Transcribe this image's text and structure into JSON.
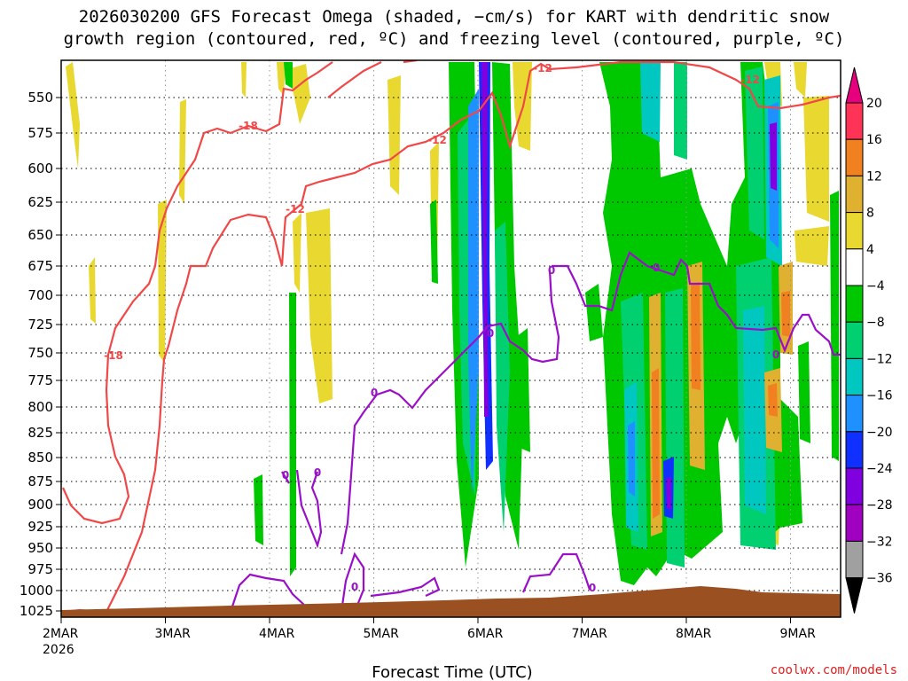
{
  "chart_data": {
    "type": "time-height cross section",
    "title_line1": "2026030200 GFS Forecast Omega (shaded, −cm/s) for KART with dendritic snow",
    "title_line2": "growth region (contoured, red, ºC) and freezing level (contoured, purple, ºC)",
    "xlabel": "Forecast Time (UTC)",
    "credit": "coolwx.com/models",
    "x_ticks": [
      "2MAR",
      "3MAR",
      "4MAR",
      "5MAR",
      "6MAR",
      "7MAR",
      "8MAR",
      "9MAR"
    ],
    "x_year": "2026",
    "y_ticks": [
      "550",
      "575",
      "600",
      "625",
      "650",
      "675",
      "700",
      "725",
      "750",
      "775",
      "800",
      "825",
      "850",
      "875",
      "900",
      "925",
      "950",
      "975",
      "1000",
      "1025"
    ],
    "colorbar": {
      "labels": [
        "20",
        "16",
        "12",
        "8",
        "4",
        "−4",
        "−8",
        "−12",
        "−16",
        "−20",
        "−24",
        "−28",
        "−32",
        "−36"
      ],
      "colors": [
        "#ff3355",
        "#f08020",
        "#e0b030",
        "#e8d830",
        "#ffffff",
        "#00c800",
        "#00d070",
        "#00c8c0",
        "#1e90ff",
        "#1030ff",
        "#8000e0",
        "#a000c0",
        "#a0a0a0"
      ],
      "top_cap": "#e6007e",
      "bottom_cap": "#000000"
    },
    "contour_labels": {
      "red": [
        "-18",
        "-18",
        "-12",
        "-12",
        "-12",
        "-12"
      ],
      "purple": [
        "0",
        "0",
        "0",
        "0",
        "0",
        "0",
        "0",
        "0",
        "0"
      ]
    },
    "colors": {
      "dgz_contour": "#f04848",
      "freezing_contour": "#9a10c8",
      "terrain": "#9a5020"
    }
  }
}
